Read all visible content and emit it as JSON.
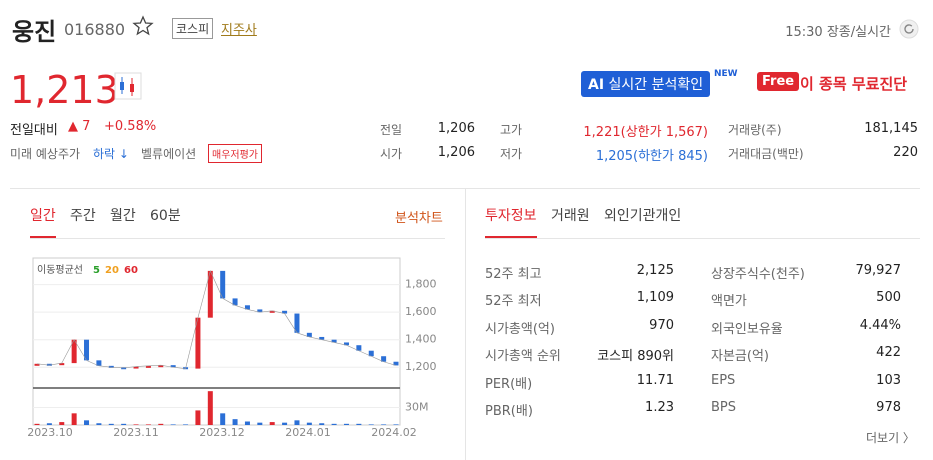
{
  "header": {
    "name": "웅진",
    "code": "016880",
    "market": "코스피",
    "sector": "지주사",
    "time": "15:30 장종/실시간"
  },
  "price": {
    "current": "1,213",
    "change_label": "전일대비",
    "change": "▲ 7",
    "change_pct": "+0.58%",
    "forecast_label": "미래 예상주가",
    "forecast": "하락 ↓",
    "valuation_label": "벨류에이션",
    "valuation": "매우저평가"
  },
  "badges": {
    "ai": "AI",
    "ai_text": "실시간 분석확인",
    "new": "NEW",
    "free": "Free",
    "free_text": "이 종목 무료진단"
  },
  "quote": [
    [
      "전일",
      "1,206"
    ],
    [
      "시가",
      "1,206"
    ],
    [
      "고가",
      "1,221(상한가 1,567)"
    ],
    [
      "저가",
      "1,205(하한가 845)"
    ],
    [
      "거래량(주)",
      "181,145"
    ],
    [
      "거래대금(백만)",
      "220"
    ]
  ],
  "chart_tabs": [
    "일간",
    "주간",
    "월간",
    "60분"
  ],
  "analysis": "분석차트",
  "info_tabs": [
    "투자정보",
    "거래원",
    "외인기관개인"
  ],
  "invest_left": [
    [
      "52주 최고",
      "2,125"
    ],
    [
      "52주 최저",
      "1,109"
    ],
    [
      "시가총액(억)",
      "970"
    ],
    [
      "시가총액 순위",
      "코스피 890위"
    ],
    [
      "PER(배)",
      "11.71"
    ],
    [
      "PBR(배)",
      "1.23"
    ]
  ],
  "invest_right": [
    [
      "상장주식수(천주)",
      "79,927"
    ],
    [
      "액면가",
      "500"
    ],
    [
      "외국인보유율",
      "4.44%"
    ],
    [
      "자본금(억)",
      "422"
    ],
    [
      "EPS",
      "103"
    ],
    [
      "BPS",
      "978"
    ]
  ],
  "more": "더보기 〉",
  "chart_data": {
    "type": "line",
    "legend_title": "이동평균선",
    "ma": [
      {
        "name": "5",
        "color": "#2ca02c"
      },
      {
        "name": "20",
        "color": "#f0a020"
      },
      {
        "name": "60",
        "color": "#e0272f"
      }
    ],
    "values": [
      1225,
      1215,
      1230,
      1400,
      1250,
      1210,
      1200,
      1195,
      1205,
      1210,
      1215,
      1200,
      1190,
      1560,
      1900,
      1700,
      1650,
      1620,
      1600,
      1610,
      1590,
      1450,
      1420,
      1400,
      1380,
      1360,
      1320,
      1280,
      1240,
      1213
    ],
    "volume": [
      2000000,
      3000000,
      5000000,
      20000000,
      8000000,
      3000000,
      2000000,
      2000000,
      1000000,
      1000000,
      2000000,
      1000000,
      1000000,
      25000000,
      58000000,
      20000000,
      10000000,
      6000000,
      4000000,
      5000000,
      4000000,
      8000000,
      4000000,
      3000000,
      2000000,
      2000000,
      2000000,
      1000000,
      1000000,
      1000000
    ],
    "ylim": [
      1100,
      1950
    ],
    "yticks": [
      {
        "value": 1800,
        "label": "1,800"
      },
      {
        "value": 1600,
        "label": "1,600"
      },
      {
        "value": 1400,
        "label": "1,400"
      },
      {
        "value": 1200,
        "label": "1,200"
      }
    ],
    "vlim": [
      0,
      60000000
    ],
    "vticks": [
      {
        "value": 30000000,
        "label": "30M"
      }
    ],
    "xticks": [
      "2023.10",
      "2023.11",
      "2023.12",
      "2024.01",
      "2024.02"
    ]
  }
}
